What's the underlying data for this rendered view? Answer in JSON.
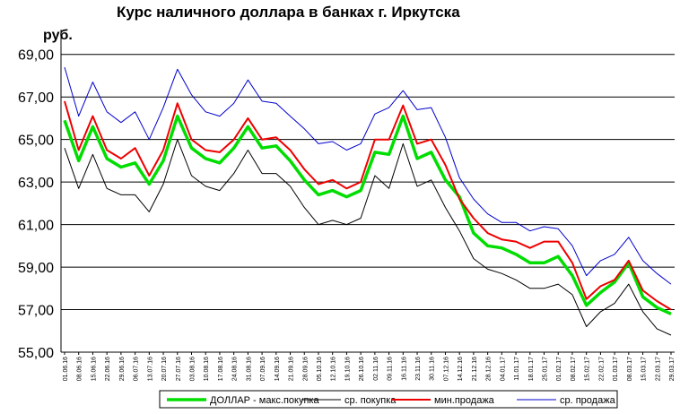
{
  "chart_data": {
    "type": "line",
    "title": "Курс наличного доллара  в банках г. Иркутска",
    "ylabel": "руб.",
    "xlabel": "",
    "ylim": [
      55,
      70
    ],
    "yticks": [
      "55,00",
      "57,00",
      "59,00",
      "61,00",
      "63,00",
      "65,00",
      "67,00",
      "69,00"
    ],
    "grid": true,
    "legend_position": "bottom",
    "x": [
      "01.06.16",
      "08.06.16",
      "15.06.16",
      "22.06.16",
      "29.06.16",
      "06.07.16",
      "13.07.16",
      "20.07.16",
      "27.07.16",
      "03.08.16",
      "10.08.16",
      "17.08.16",
      "24.08.16",
      "31.08.16",
      "07.09.16",
      "14.09.16",
      "21.09.16",
      "28.09.16",
      "05.10.16",
      "12.10.16",
      "19.10.16",
      "26.10.16",
      "02.11.16",
      "09.11.16",
      "16.11.16",
      "23.11.16",
      "30.11.16",
      "07.12.16",
      "14.12.16",
      "21.12.16",
      "28.12.16",
      "04.01.17",
      "11.01.17",
      "18.01.17",
      "25.01.17",
      "01.02.17",
      "08.02.17",
      "15.02.17",
      "22.02.17",
      "01.03.17",
      "08.03.17",
      "15.03.17",
      "22.03.17",
      "29.03.17"
    ],
    "series": [
      {
        "name": "ДОЛЛАР - макс.покупка",
        "color": "#00dd00",
        "values": [
          65.9,
          64.0,
          65.6,
          64.1,
          63.7,
          63.9,
          62.9,
          64.0,
          66.1,
          64.6,
          64.1,
          63.9,
          64.6,
          65.6,
          64.6,
          64.7,
          64.0,
          63.1,
          62.4,
          62.6,
          62.3,
          62.6,
          64.4,
          64.3,
          66.1,
          64.1,
          64.4,
          63.1,
          62.3,
          60.6,
          60.0,
          59.9,
          59.6,
          59.2,
          59.2,
          59.5,
          58.6,
          57.2,
          57.8,
          58.3,
          59.2,
          57.6,
          57.1,
          56.8
        ]
      },
      {
        "name": "ср. покупка",
        "color": "#000000",
        "values": [
          64.6,
          62.7,
          64.3,
          62.7,
          62.4,
          62.4,
          61.6,
          62.9,
          65.0,
          63.3,
          62.8,
          62.6,
          63.4,
          64.5,
          63.4,
          63.4,
          62.8,
          61.8,
          61.0,
          61.2,
          61.0,
          61.3,
          63.3,
          62.7,
          64.8,
          62.8,
          63.1,
          61.8,
          60.7,
          59.4,
          58.9,
          58.7,
          58.4,
          58.0,
          58.0,
          58.2,
          57.7,
          56.2,
          56.9,
          57.3,
          58.2,
          56.9,
          56.1,
          55.8
        ]
      },
      {
        "name": "мин.продажа",
        "color": "#ee0000",
        "values": [
          66.8,
          64.5,
          66.1,
          64.5,
          64.1,
          64.6,
          63.3,
          64.5,
          66.7,
          65.0,
          64.5,
          64.4,
          65.0,
          66.0,
          65.0,
          65.1,
          64.5,
          63.6,
          62.9,
          63.1,
          62.7,
          63.0,
          65.0,
          65.0,
          66.6,
          64.8,
          65.0,
          63.8,
          62.2,
          61.3,
          60.6,
          60.3,
          60.2,
          59.9,
          60.2,
          60.2,
          59.2,
          57.5,
          58.1,
          58.4,
          59.3,
          57.9,
          57.4,
          57.0
        ]
      },
      {
        "name": "ср. продажа",
        "color": "#0000cc",
        "values": [
          68.4,
          66.1,
          67.7,
          66.3,
          65.8,
          66.3,
          65.0,
          66.5,
          68.3,
          67.1,
          66.3,
          66.1,
          66.7,
          67.8,
          66.8,
          66.7,
          66.1,
          65.5,
          64.8,
          64.9,
          64.5,
          64.8,
          66.2,
          66.5,
          67.3,
          66.4,
          66.5,
          65.1,
          63.2,
          62.2,
          61.5,
          61.1,
          61.1,
          60.7,
          60.9,
          60.8,
          60.0,
          58.6,
          59.3,
          59.6,
          60.4,
          59.3,
          58.7,
          58.2
        ]
      }
    ]
  }
}
